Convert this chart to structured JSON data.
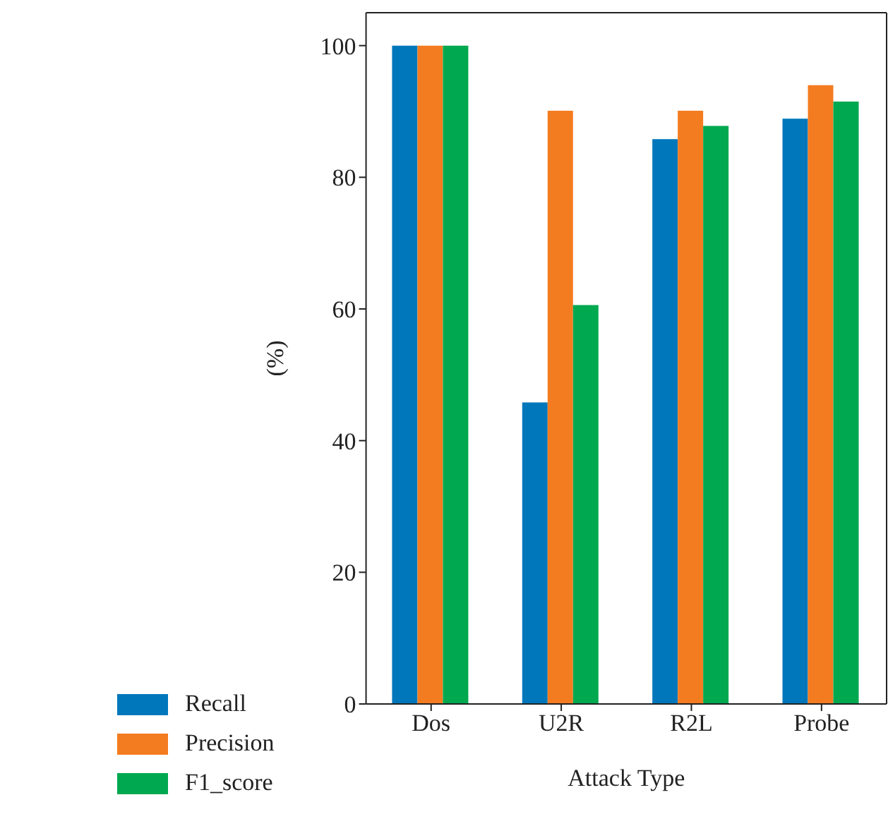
{
  "chart_data": {
    "type": "bar",
    "xlabel": "Attack Type",
    "ylabel": "(%)",
    "categories": [
      "Dos",
      "U2R",
      "R2L",
      "Probe"
    ],
    "series": [
      {
        "name": "Recall",
        "color": "#0077bb",
        "values": [
          100,
          45.8,
          85.8,
          88.9
        ]
      },
      {
        "name": "Precision",
        "color": "#f47c20",
        "values": [
          100,
          90.1,
          90.1,
          94.0
        ]
      },
      {
        "name": "F1_score",
        "color": "#00a84f",
        "values": [
          100,
          60.6,
          87.8,
          91.5
        ]
      }
    ],
    "ylim": [
      0,
      105
    ],
    "yticks": [
      0,
      20,
      40,
      60,
      80,
      100
    ],
    "grid": false,
    "legend": "bottom left"
  }
}
